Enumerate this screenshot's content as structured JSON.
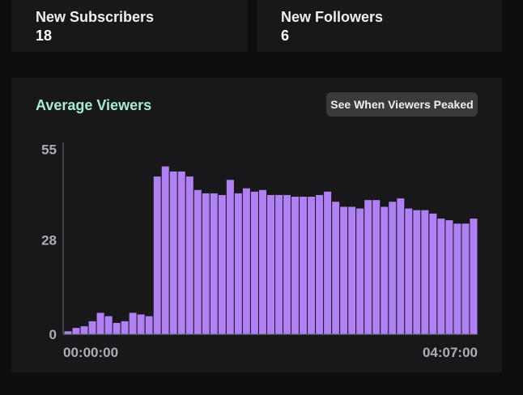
{
  "stats": [
    {
      "label": "New Subscribers",
      "value": "18"
    },
    {
      "label": "New Followers",
      "value": "6"
    }
  ],
  "chart_panel": {
    "title": "Average Viewers",
    "peak_button_label": "See When Viewers Peaked"
  },
  "colors": {
    "bar_fill": "#b081f5",
    "bar_stroke": "#18181b",
    "title": "#a8ebd3",
    "axis": "#adadb8"
  },
  "chart_data": {
    "type": "bar",
    "title": "",
    "xlabel": "",
    "ylabel": "",
    "ylim": [
      0,
      57
    ],
    "yticks": [
      "0",
      "28",
      "55"
    ],
    "x_start_label": "00:00:00",
    "x_end_label": "04:07:00",
    "values": [
      1,
      2,
      2.5,
      4,
      6.5,
      5.5,
      3.5,
      4,
      6.5,
      6,
      5.5,
      47,
      50,
      48.5,
      48.5,
      47,
      43,
      42,
      42,
      41.5,
      46,
      42,
      43.5,
      42.5,
      43,
      41.5,
      41.5,
      41.5,
      41,
      41,
      41,
      41.5,
      42.5,
      39.5,
      38,
      38,
      37.5,
      40,
      40,
      38,
      39.5,
      40.5,
      37.5,
      37,
      37,
      36,
      34.5,
      34,
      33,
      33,
      34.5
    ],
    "grid": false,
    "legend": "none"
  }
}
